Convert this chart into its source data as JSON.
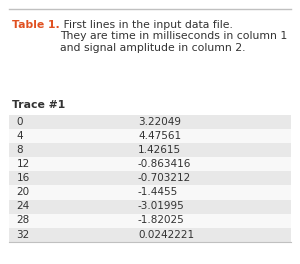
{
  "title_bold": "Table 1.",
  "title_regular": " First lines in the input data file.\nThey are time in milliseconds in column 1\nand signal amplitude in column 2.",
  "subtitle": "Trace #1",
  "col1": [
    "0",
    "4",
    "8",
    "12",
    "16",
    "20",
    "24",
    "28",
    "32"
  ],
  "col2": [
    "3.22049",
    "4.47561",
    "1.42615",
    "-0.863416",
    "-0.703212",
    "-1.4455",
    "-3.01995",
    "-1.82025",
    "0.0242221"
  ],
  "title_color": "#E05020",
  "text_color": "#333333",
  "bg_color": "#ffffff",
  "row_shaded_color": "#E8E8E8",
  "row_white_color": "#F8F8F8",
  "top_line_color": "#C0C0C0",
  "bottom_line_color": "#C0C0C0",
  "title_fontsize": 7.8,
  "body_fontsize": 7.5,
  "subtitle_fontsize": 7.8
}
